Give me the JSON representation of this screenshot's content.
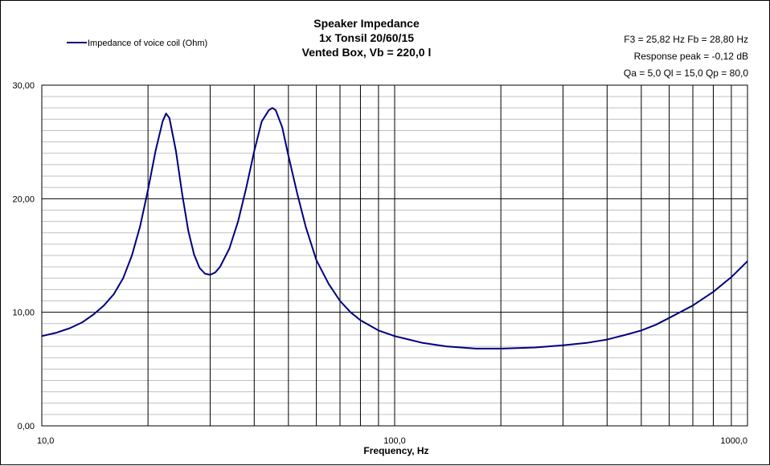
{
  "chart_data": {
    "type": "line",
    "title": [
      "Speaker Impedance",
      "1x Tonsil 20/60/15",
      "Vented Box, Vb = 220,0 l"
    ],
    "xlabel": "Frequency, Hz",
    "ylabel": "",
    "x_scale": "log",
    "xlim": [
      10,
      1000
    ],
    "ylim": [
      0,
      30
    ],
    "x_ticks": [
      {
        "value": 10,
        "label": "10,0"
      },
      {
        "value": 100,
        "label": "100,0"
      },
      {
        "value": 1000,
        "label": "1000,0"
      }
    ],
    "y_ticks": [
      {
        "value": 0,
        "label": "0,00"
      },
      {
        "value": 10,
        "label": "10,00"
      },
      {
        "value": 20,
        "label": "20,00"
      },
      {
        "value": 30,
        "label": "30,00"
      }
    ],
    "grid": true,
    "legend": {
      "placement": "top-left",
      "entries": [
        "Impedance of voice coil (Ohm)"
      ]
    },
    "annotations": [
      "F3 = 25,82  Hz   Fb = 28,80  Hz",
      "Response peak = -0,12  dB",
      "Qa = 5,0   Ql = 15,0   Qp = 80,0"
    ],
    "series": [
      {
        "name": "Impedance of voice coil (Ohm)",
        "color": "#000080",
        "points": [
          [
            10,
            7.9
          ],
          [
            11,
            8.2
          ],
          [
            12,
            8.6
          ],
          [
            13,
            9.1
          ],
          [
            14,
            9.8
          ],
          [
            15,
            10.6
          ],
          [
            16,
            11.6
          ],
          [
            17,
            13.0
          ],
          [
            18,
            15.0
          ],
          [
            19,
            17.6
          ],
          [
            20,
            20.8
          ],
          [
            21,
            24.2
          ],
          [
            22,
            26.8
          ],
          [
            22.5,
            27.5
          ],
          [
            23,
            27.1
          ],
          [
            24,
            24.2
          ],
          [
            25,
            20.4
          ],
          [
            26,
            17.2
          ],
          [
            27,
            15.1
          ],
          [
            28,
            13.9
          ],
          [
            29,
            13.4
          ],
          [
            30,
            13.3
          ],
          [
            31,
            13.5
          ],
          [
            32,
            14.0
          ],
          [
            34,
            15.6
          ],
          [
            36,
            18.0
          ],
          [
            38,
            21.0
          ],
          [
            40,
            24.2
          ],
          [
            42,
            26.8
          ],
          [
            44,
            27.8
          ],
          [
            45,
            28.0
          ],
          [
            46,
            27.8
          ],
          [
            48,
            26.3
          ],
          [
            50,
            23.8
          ],
          [
            53,
            20.4
          ],
          [
            56,
            17.5
          ],
          [
            60,
            14.6
          ],
          [
            65,
            12.5
          ],
          [
            70,
            11.0
          ],
          [
            75,
            10.0
          ],
          [
            80,
            9.3
          ],
          [
            90,
            8.4
          ],
          [
            100,
            7.9
          ],
          [
            120,
            7.3
          ],
          [
            140,
            7.0
          ],
          [
            170,
            6.8
          ],
          [
            200,
            6.8
          ],
          [
            250,
            6.9
          ],
          [
            300,
            7.1
          ],
          [
            350,
            7.3
          ],
          [
            400,
            7.6
          ],
          [
            450,
            8.0
          ],
          [
            500,
            8.4
          ],
          [
            550,
            8.9
          ],
          [
            600,
            9.5
          ],
          [
            700,
            10.6
          ],
          [
            800,
            11.8
          ],
          [
            900,
            13.1
          ],
          [
            1000,
            14.5
          ]
        ]
      }
    ]
  }
}
